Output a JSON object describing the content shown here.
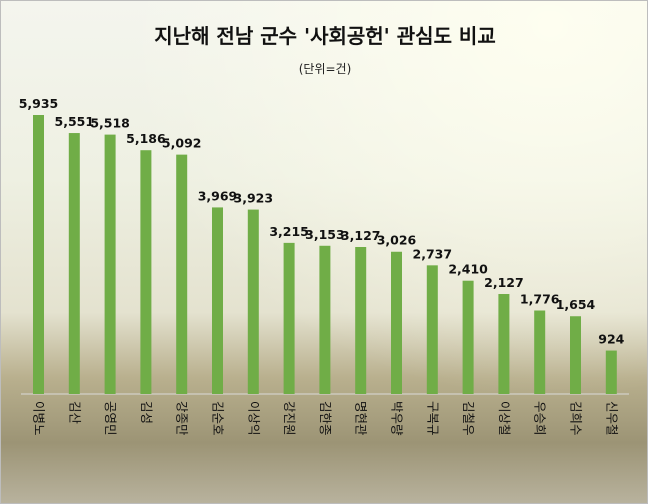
{
  "chart_data": {
    "type": "bar",
    "title": "지난해 전남 군수 '사회공헌' 관심도 비교",
    "subtitle": "(단위=건)",
    "categories": [
      "이병노",
      "김산",
      "공영민",
      "김성",
      "강종만",
      "김순호",
      "이상익",
      "강진원",
      "김한종",
      "명현관",
      "박우량",
      "구복규",
      "김철우",
      "이상철",
      "우승희",
      "김희수",
      "신우철"
    ],
    "values": [
      5935,
      5551,
      5518,
      5186,
      5092,
      3969,
      3923,
      3215,
      3153,
      3127,
      3026,
      2737,
      2410,
      2127,
      1776,
      1654,
      924
    ],
    "value_labels": [
      "5,935",
      "5,551",
      "5,518",
      "5,186",
      "5,092",
      "3,969",
      "3,923",
      "3,215",
      "3,153",
      "3,127",
      "3,026",
      "2,737",
      "2,410",
      "2,127",
      "1,776",
      "1,654",
      "924"
    ],
    "ylim": [
      0,
      5935
    ],
    "grid": false,
    "bar_color": "#70ad47"
  }
}
